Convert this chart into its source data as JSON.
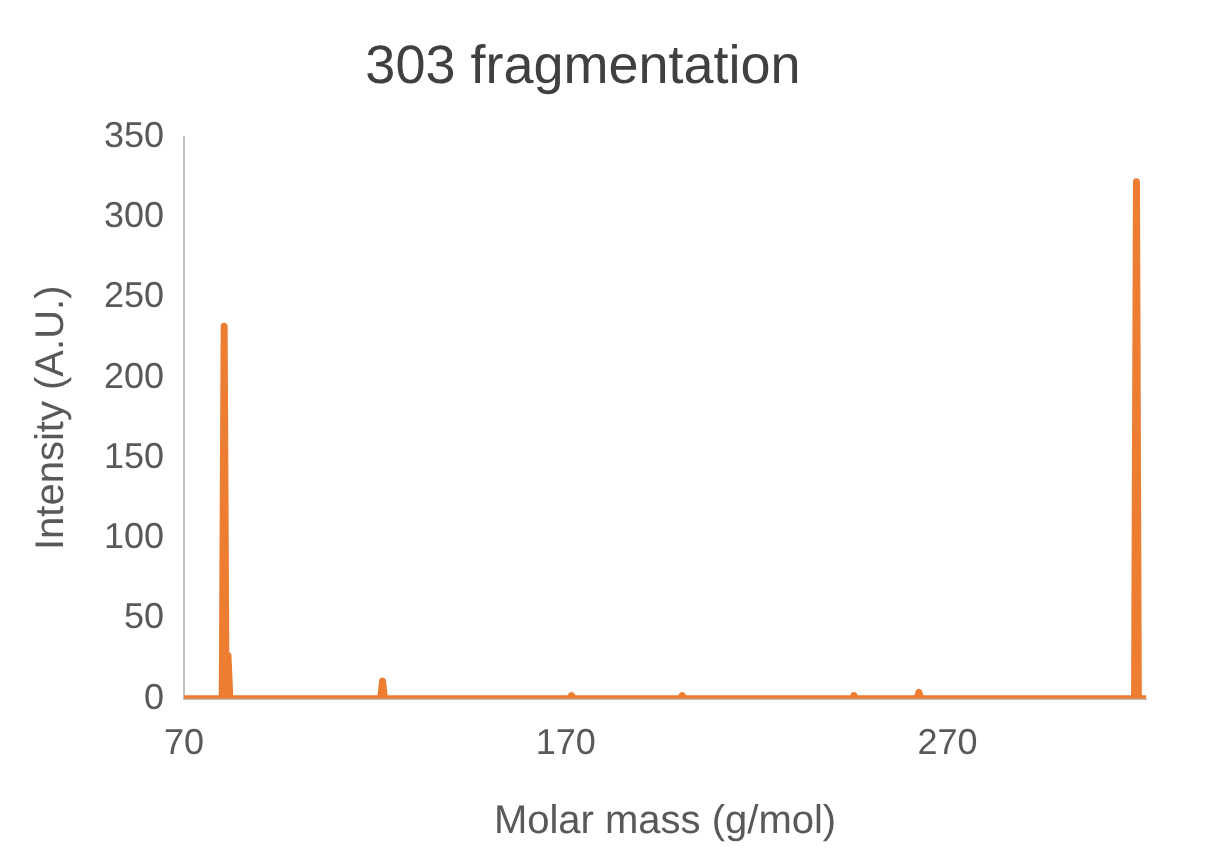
{
  "chart_data": {
    "type": "line",
    "title": "303 fragmentation",
    "xlabel": "Molar mass (g/mol)",
    "ylabel": "Intensity (A.U.)",
    "x": [
      70,
      80,
      80.5,
      81,
      81.5,
      82,
      121.5,
      122,
      122.5,
      171,
      171.5,
      172,
      200,
      200.5,
      201,
      245,
      245.5,
      246,
      262,
      262.5,
      263,
      319,
      319.5,
      320,
      322
    ],
    "series": [
      {
        "color": "#ed7d31",
        "values": [
          0,
          0,
          232,
          0,
          27,
          0,
          0,
          11,
          0,
          0,
          2,
          0,
          0,
          2,
          0,
          0,
          2,
          0,
          0,
          4,
          0,
          0,
          322,
          0,
          0
        ]
      }
    ],
    "xlim": [
      70,
      322
    ],
    "xticks": [
      70,
      170,
      270
    ],
    "ylim": [
      0,
      350
    ],
    "yticks": [
      0,
      50,
      100,
      150,
      200,
      250,
      300,
      350
    ],
    "grid": false,
    "legend": false,
    "marker": "none",
    "line_style": "solid"
  }
}
